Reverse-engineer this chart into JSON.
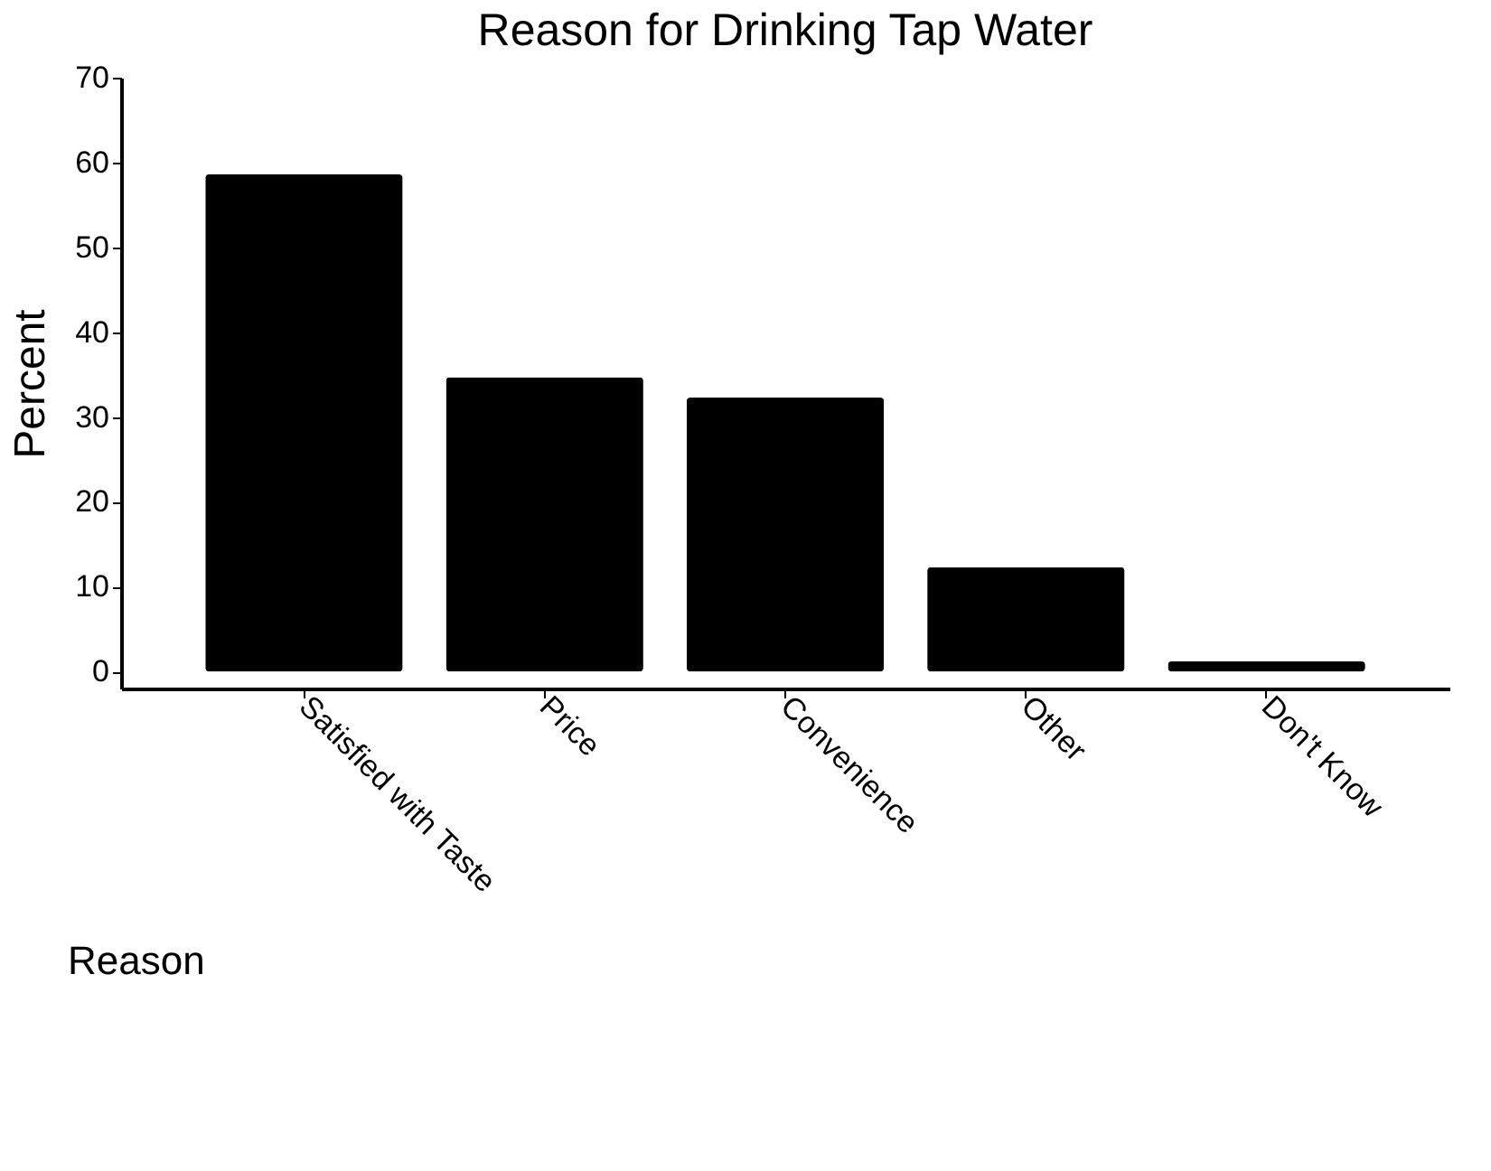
{
  "chart_data": {
    "type": "bar",
    "title": "Reason for Drinking Tap Water",
    "xlabel": "Reason",
    "ylabel": "Percent",
    "categories": [
      "Satisfied with Taste",
      "Price",
      "Convenience",
      "Other",
      "Don't Know"
    ],
    "values": [
      58.6,
      34.7,
      32.3,
      12.3,
      1.2
    ],
    "color": "#000000",
    "ylim": [
      -2,
      70
    ],
    "yticks": [
      0,
      10,
      20,
      30,
      40,
      50,
      60,
      70
    ],
    "grid": false
  }
}
